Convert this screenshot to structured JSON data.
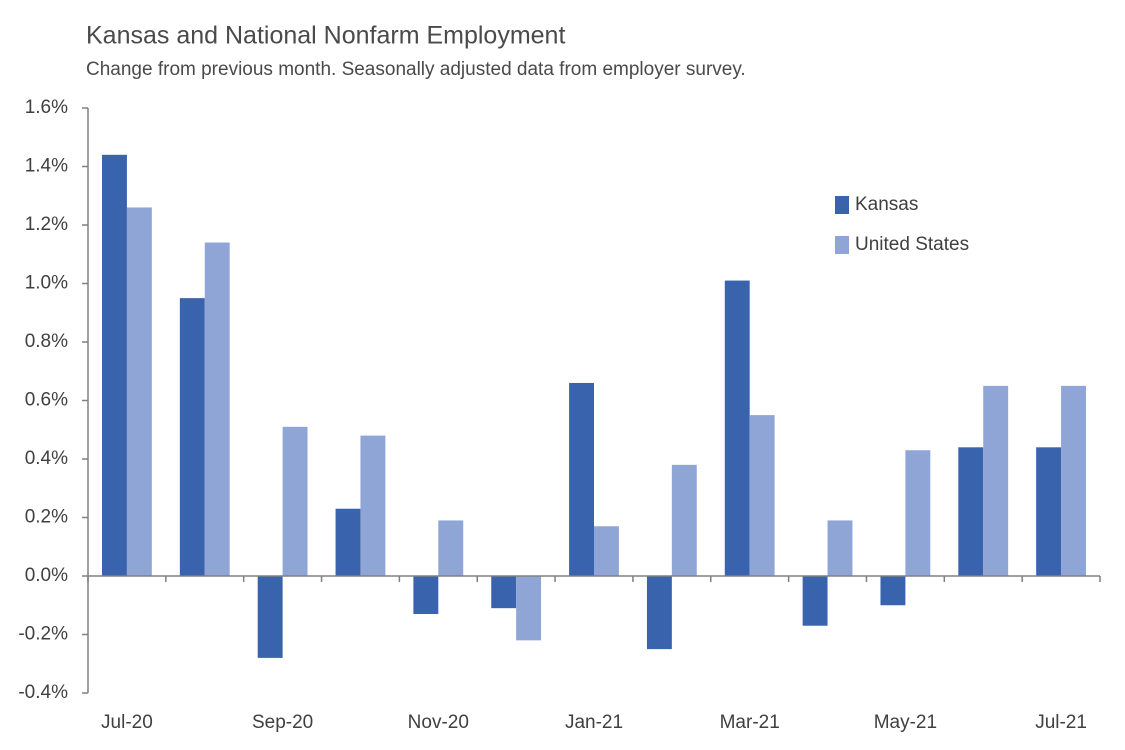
{
  "chart_data": {
    "type": "bar",
    "title": "Kansas and National Nonfarm Employment",
    "subtitle": "Change from previous month. Seasonally adjusted data from employer survey.",
    "categories": [
      "Jul-20",
      null,
      "Sep-20",
      null,
      "Nov-20",
      null,
      "Jan-21",
      null,
      "Mar-21",
      null,
      "May-21",
      null,
      "Jul-21"
    ],
    "series": [
      {
        "name": "Kansas",
        "color": "#3a63ad",
        "values": [
          1.44,
          0.95,
          -0.28,
          0.23,
          -0.13,
          -0.11,
          0.66,
          -0.25,
          1.01,
          -0.17,
          -0.1,
          0.44,
          0.44
        ]
      },
      {
        "name": "United States",
        "color": "#8fa5d6",
        "values": [
          1.26,
          1.14,
          0.51,
          0.48,
          0.19,
          -0.22,
          0.17,
          0.38,
          0.55,
          0.19,
          0.43,
          0.65,
          0.65
        ]
      }
    ],
    "ylim": [
      -0.4,
      1.6
    ],
    "yticks": [
      {
        "value": -0.4,
        "label": "-0.4%"
      },
      {
        "value": -0.2,
        "label": "-0.2%"
      },
      {
        "value": 0,
        "label": "0.0%"
      },
      {
        "value": 0.2,
        "label": "0.2%"
      },
      {
        "value": 0.4,
        "label": "0.4%"
      },
      {
        "value": 0.6,
        "label": "0.6%"
      },
      {
        "value": 0.8,
        "label": "0.8%"
      },
      {
        "value": 1.0,
        "label": "1.0%"
      },
      {
        "value": 1.2,
        "label": "1.2%"
      },
      {
        "value": 1.4,
        "label": "1.4%"
      },
      {
        "value": 1.6,
        "label": "1.6%"
      }
    ],
    "grid": false,
    "legend": "upper right"
  }
}
